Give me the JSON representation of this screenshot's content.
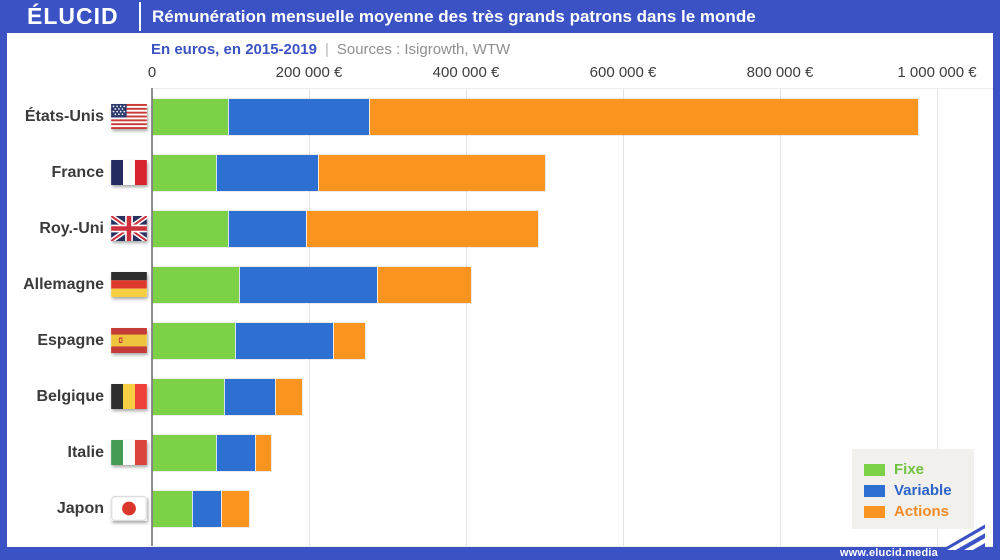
{
  "header": {
    "logo_text": "ÉLUCID",
    "title": "Rémunération mensuelle moyenne des très grands patrons dans le monde"
  },
  "subtitle": {
    "left": "En euros, en 2015-2019",
    "separator": "|",
    "sources": "Sources : Isigrowth, WTW"
  },
  "footer": {
    "url": "www.elucid.media"
  },
  "colors": {
    "brand_blue": "#3b52c4",
    "fixe_green": "#7cd147",
    "variable_blue": "#2e70d2",
    "actions_orange": "#f8941f",
    "legend_bg": "#f1f0ed",
    "gridline": "#e4e4e4",
    "axis_line": "#8f8f8f",
    "tick_text": "#3d3d3d"
  },
  "legend": {
    "position": "bottom-right",
    "items": [
      {
        "label": "Fixe",
        "color": "#7cd147",
        "label_color": "#70c33e"
      },
      {
        "label": "Variable",
        "color": "#2e70d2",
        "label_color": "#2b63c9"
      },
      {
        "label": "Actions",
        "color": "#f8941f",
        "label_color": "#f28b26"
      }
    ]
  },
  "chart_data": {
    "type": "bar",
    "orientation": "horizontal",
    "stacked": true,
    "title": "Rémunération mensuelle moyenne des très grands patrons dans le monde",
    "subtitle": "En euros, en 2015-2019",
    "sources": "Isigrowth, WTW",
    "unit": "euros per month",
    "grid": "vertical",
    "legend_position": "bottom-right",
    "xlim": [
      0,
      1000000
    ],
    "x_ticks": [
      "0",
      "200 000 €",
      "400 000 €",
      "600 000 €",
      "800 000 €",
      "1 000 000 €"
    ],
    "categories": [
      "États-Unis",
      "France",
      "Roy.-Uni",
      "Allemagne",
      "Espagne",
      "Belgique",
      "Italie",
      "Japon"
    ],
    "flag_icons": [
      "us-flag-icon",
      "france-flag-icon",
      "uk-flag-icon",
      "germany-flag-icon",
      "spain-flag-icon",
      "belgium-flag-icon",
      "italy-flag-icon",
      "japan-flag-icon"
    ],
    "series": [
      {
        "name": "Fixe",
        "color": "#7cd147",
        "values": [
          95000,
          80000,
          95000,
          110000,
          105000,
          90000,
          80000,
          50000
        ]
      },
      {
        "name": "Variable",
        "color": "#2e70d2",
        "values": [
          180000,
          130000,
          100000,
          175000,
          125000,
          65000,
          50000,
          36000
        ]
      },
      {
        "name": "Actions",
        "color": "#f8941f",
        "values": [
          700000,
          290000,
          295000,
          120000,
          40000,
          35000,
          20000,
          36000
        ]
      }
    ],
    "totals": [
      975000,
      500000,
      490000,
      405000,
      270000,
      190000,
      150000,
      122000
    ]
  }
}
